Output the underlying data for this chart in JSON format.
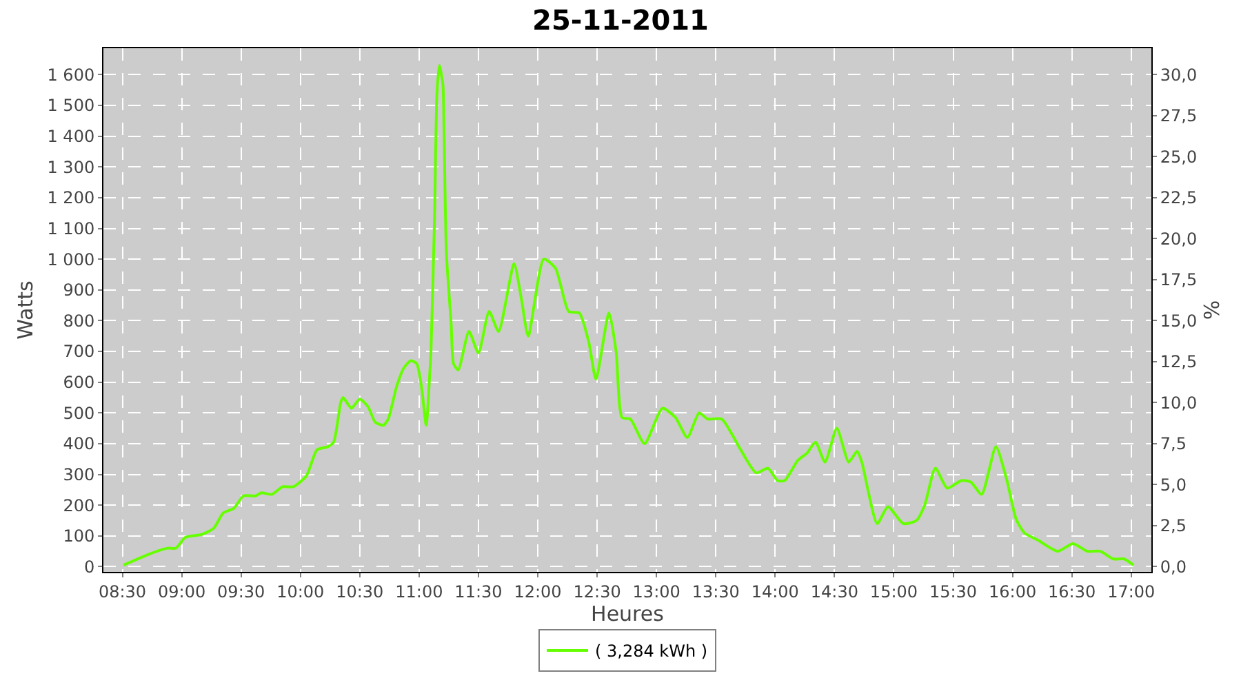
{
  "chart_data": {
    "type": "line",
    "title": "25-11-2011",
    "xlabel": "Heures",
    "ylabel": "Watts",
    "y2label": "%",
    "x": [
      8.51,
      8.72,
      8.88,
      8.95,
      9.03,
      9.17,
      9.27,
      9.35,
      9.44,
      9.52,
      9.62,
      9.67,
      9.76,
      9.85,
      9.94,
      10.05,
      10.14,
      10.23,
      10.28,
      10.34,
      10.36,
      10.43,
      10.5,
      10.57,
      10.63,
      10.7,
      10.74,
      10.81,
      10.87,
      10.93,
      10.98,
      11.02,
      11.06,
      11.09,
      11.1,
      11.13,
      11.15,
      11.17,
      11.2,
      11.21,
      11.23,
      11.27,
      11.29,
      11.33,
      11.42,
      11.5,
      11.59,
      11.67,
      11.8,
      11.86,
      11.92,
      12.05,
      12.15,
      12.26,
      12.35,
      12.43,
      12.49,
      12.6,
      12.66,
      12.71,
      12.78,
      12.9,
      13.05,
      13.16,
      13.26,
      13.36,
      13.43,
      13.55,
      13.71,
      13.84,
      13.94,
      14.02,
      14.08,
      14.19,
      14.27,
      14.34,
      14.42,
      14.52,
      14.62,
      14.69,
      14.73,
      14.86,
      14.95,
      15.08,
      15.19,
      15.26,
      15.35,
      15.45,
      15.57,
      15.65,
      15.74,
      15.86,
      15.95,
      16.03,
      16.1,
      16.22,
      16.38,
      16.51,
      16.63,
      16.74,
      16.85,
      16.94,
      17.02
    ],
    "series": [
      {
        "name": "( 3,284 kWh )",
        "color": "#66ff00",
        "values": [
          5,
          40,
          60,
          60,
          95,
          105,
          125,
          175,
          190,
          230,
          230,
          240,
          235,
          260,
          260,
          295,
          380,
          390,
          405,
          535,
          550,
          515,
          545,
          520,
          470,
          460,
          480,
          585,
          645,
          670,
          660,
          585,
          460,
          630,
          700,
          1135,
          1535,
          1630,
          1570,
          1420,
          1020,
          790,
          660,
          640,
          765,
          695,
          830,
          765,
          985,
          875,
          750,
          1000,
          970,
          830,
          825,
          730,
          610,
          825,
          700,
          485,
          480,
          400,
          515,
          485,
          420,
          500,
          480,
          480,
          380,
          305,
          320,
          280,
          280,
          345,
          370,
          405,
          340,
          450,
          340,
          375,
          340,
          140,
          195,
          140,
          150,
          200,
          320,
          255,
          280,
          275,
          235,
          390,
          285,
          155,
          110,
          85,
          50,
          75,
          50,
          50,
          25,
          25,
          5
        ]
      }
    ],
    "xlim": [
      8.34,
      17.17
    ],
    "xticks": [
      {
        "value": 8.5,
        "label": "08:30"
      },
      {
        "value": 9,
        "label": "09:00"
      },
      {
        "value": 9.5,
        "label": "09:30"
      },
      {
        "value": 10,
        "label": "10:00"
      },
      {
        "value": 10.5,
        "label": "10:30"
      },
      {
        "value": 11,
        "label": "11:00"
      },
      {
        "value": 11.5,
        "label": "11:30"
      },
      {
        "value": 12,
        "label": "12:00"
      },
      {
        "value": 12.5,
        "label": "12:30"
      },
      {
        "value": 13,
        "label": "13:00"
      },
      {
        "value": 13.5,
        "label": "13:30"
      },
      {
        "value": 14,
        "label": "14:00"
      },
      {
        "value": 14.5,
        "label": "14:30"
      },
      {
        "value": 15,
        "label": "15:00"
      },
      {
        "value": 15.5,
        "label": "15:30"
      },
      {
        "value": 16,
        "label": "16:00"
      },
      {
        "value": 16.5,
        "label": "16:30"
      },
      {
        "value": 17,
        "label": "17:00"
      }
    ],
    "ylim": [
      -17,
      1686
    ],
    "yticks": [
      0,
      100,
      200,
      300,
      400,
      500,
      600,
      700,
      800,
      900,
      {
        "value": 1000,
        "label": "1 000"
      },
      {
        "value": 1100,
        "label": "1 100"
      },
      {
        "value": 1200,
        "label": "1 200"
      },
      {
        "value": 1300,
        "label": "1 300"
      },
      {
        "value": 1400,
        "label": "1 400"
      },
      {
        "value": 1500,
        "label": "1 500"
      },
      {
        "value": 1600,
        "label": "1 600"
      }
    ],
    "y2lim": [
      -0.32,
      31.6
    ],
    "y2ticks": [
      {
        "value": 0,
        "label": "0,0"
      },
      {
        "value": 2.5,
        "label": "2,5"
      },
      {
        "value": 5,
        "label": "5,0"
      },
      {
        "value": 7.5,
        "label": "7,5"
      },
      {
        "value": 10,
        "label": "10,0"
      },
      {
        "value": 12.5,
        "label": "12,5"
      },
      {
        "value": 15,
        "label": "15,0"
      },
      {
        "value": 17.5,
        "label": "17,5"
      },
      {
        "value": 20,
        "label": "20,0"
      },
      {
        "value": 22.5,
        "label": "22,5"
      },
      {
        "value": 25,
        "label": "25,0"
      },
      {
        "value": 27.5,
        "label": "27,5"
      },
      {
        "value": 30,
        "label": "30,0"
      }
    ],
    "grid": true,
    "legend": "bottom",
    "marker": "none",
    "line_style": "solid"
  }
}
